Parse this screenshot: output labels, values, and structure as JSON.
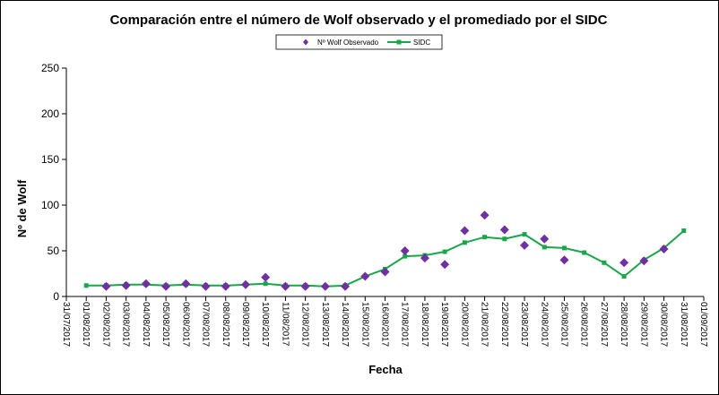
{
  "chart_data": {
    "type": "line",
    "title": "Comparación entre el número de Wolf observado y el promediado por el SIDC",
    "xlabel": "Fecha",
    "ylabel": "Nº de Wolf",
    "ylim": [
      0,
      250
    ],
    "yticks": [
      0,
      50,
      100,
      150,
      200,
      250
    ],
    "grid": false,
    "legend_position": "top-center",
    "categories": [
      "31/07/2017",
      "01/08/2017",
      "02/08/2017",
      "03/08/2017",
      "04/08/2017",
      "05/08/2017",
      "06/08/2017",
      "07/08/2017",
      "08/08/2017",
      "09/08/2017",
      "10/08/2017",
      "11/08/2017",
      "12/08/2017",
      "13/08/2017",
      "14/08/2017",
      "15/08/2017",
      "16/08/2017",
      "17/08/2017",
      "18/08/2017",
      "19/08/2017",
      "20/08/2017",
      "21/08/2017",
      "22/08/2017",
      "23/08/2017",
      "24/08/2017",
      "25/08/2017",
      "26/08/2017",
      "27/08/2017",
      "28/08/2017",
      "29/08/2017",
      "30/08/2017",
      "31/08/2017",
      "01/09/2017"
    ],
    "series": [
      {
        "name": "Nº Wolf Observado",
        "style": "scatter",
        "marker": "diamond",
        "color": "#7030A0",
        "values": [
          null,
          null,
          11,
          12,
          14,
          11,
          14,
          11,
          11,
          13,
          21,
          11,
          11,
          11,
          11,
          22,
          27,
          50,
          42,
          35,
          72,
          89,
          73,
          56,
          63,
          40,
          null,
          null,
          37,
          39,
          52,
          null,
          null
        ]
      },
      {
        "name": "SIDC",
        "style": "line",
        "marker": "square",
        "color": "#1AA64A",
        "values": [
          null,
          12,
          12,
          13,
          13,
          12,
          13,
          12,
          12,
          13,
          14,
          12,
          12,
          11,
          12,
          22,
          30,
          44,
          45,
          49,
          59,
          65,
          63,
          68,
          54,
          53,
          48,
          37,
          22,
          40,
          53,
          72,
          null
        ]
      }
    ]
  },
  "legend": {
    "observed_label": "Nº Wolf Observado",
    "sidc_label": "SIDC"
  }
}
